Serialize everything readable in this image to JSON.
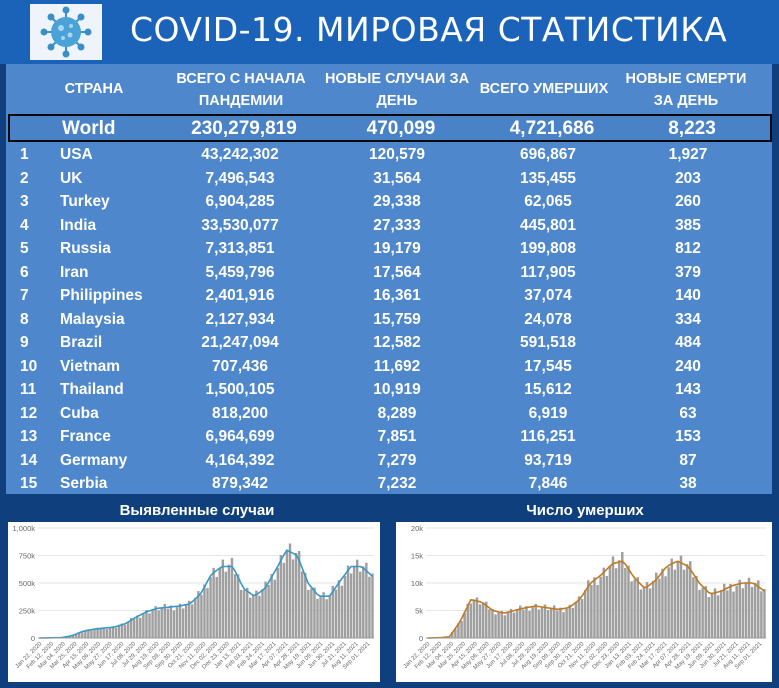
{
  "header": {
    "title": "COVID-19. МИРОВАЯ СТАТИСТИКА",
    "logo_icon": "coronavirus-icon"
  },
  "table": {
    "columns": [
      "СТРАНА",
      "ВСЕГО С НАЧАЛА ПАНДЕМИИ",
      "НОВЫЕ СЛУЧАИ ЗА ДЕНЬ",
      "ВСЕГО УМЕРШИХ",
      "НОВЫЕ СМЕРТИ ЗА ДЕНЬ"
    ],
    "world": {
      "name": "World",
      "total": "230,279,819",
      "new": "470,099",
      "deaths": "4,721,686",
      "new_deaths": "8,223"
    },
    "rows": [
      {
        "rank": "1",
        "country": "USA",
        "total": "43,242,302",
        "new": "120,579",
        "deaths": "696,867",
        "new_deaths": "1,927"
      },
      {
        "rank": "2",
        "country": "UK",
        "total": "7,496,543",
        "new": "31,564",
        "deaths": "135,455",
        "new_deaths": "203"
      },
      {
        "rank": "3",
        "country": "Turkey",
        "total": "6,904,285",
        "new": "29,338",
        "deaths": "62,065",
        "new_deaths": "260"
      },
      {
        "rank": "4",
        "country": "India",
        "total": "33,530,077",
        "new": "27,333",
        "deaths": "445,801",
        "new_deaths": "385"
      },
      {
        "rank": "5",
        "country": "Russia",
        "total": "7,313,851",
        "new": "19,179",
        "deaths": "199,808",
        "new_deaths": "812"
      },
      {
        "rank": "6",
        "country": "Iran",
        "total": "5,459,796",
        "new": "17,564",
        "deaths": "117,905",
        "new_deaths": "379"
      },
      {
        "rank": "7",
        "country": "Philippines",
        "total": "2,401,916",
        "new": "16,361",
        "deaths": "37,074",
        "new_deaths": "140"
      },
      {
        "rank": "8",
        "country": "Malaysia",
        "total": "2,127,934",
        "new": "15,759",
        "deaths": "24,078",
        "new_deaths": "334"
      },
      {
        "rank": "9",
        "country": "Brazil",
        "total": "21,247,094",
        "new": "12,582",
        "deaths": "591,518",
        "new_deaths": "484"
      },
      {
        "rank": "10",
        "country": "Vietnam",
        "total": "707,436",
        "new": "11,692",
        "deaths": "17,545",
        "new_deaths": "240"
      },
      {
        "rank": "11",
        "country": "Thailand",
        "total": "1,500,105",
        "new": "10,919",
        "deaths": "15,612",
        "new_deaths": "143"
      },
      {
        "rank": "12",
        "country": "Cuba",
        "total": "818,200",
        "new": "8,289",
        "deaths": "6,919",
        "new_deaths": "63"
      },
      {
        "rank": "13",
        "country": "France",
        "total": "6,964,699",
        "new": "7,851",
        "deaths": "116,251",
        "new_deaths": "153"
      },
      {
        "rank": "14",
        "country": "Germany",
        "total": "4,164,392",
        "new": "7,279",
        "deaths": "93,719",
        "new_deaths": "87"
      },
      {
        "rank": "15",
        "country": "Serbia",
        "total": "879,342",
        "new": "7,232",
        "deaths": "7,846",
        "new_deaths": "38"
      }
    ]
  },
  "charts": {
    "left_title": "Выявленные случаи",
    "right_title": "Число умерших"
  },
  "chart_data": [
    {
      "type": "bar",
      "title": "Выявленные случаи",
      "yticks": [
        "0",
        "250k",
        "500k",
        "750k",
        "1,000k"
      ],
      "ylim": [
        0,
        1000000
      ],
      "xticks": [
        "Jan 22, 2020",
        "Feb 12, 2020",
        "Mar 04, 2020",
        "Mar 25, 2020",
        "Apr 15, 2020",
        "May 06, 2020",
        "May 27, 2020",
        "Jun 17, 2020",
        "Jul 08, 2020",
        "Jul 29, 2020",
        "Aug 19, 2020",
        "Sep 09, 2020",
        "Sep 30, 2020",
        "Oct 21, 2020",
        "Nov 11, 2020",
        "Dec 02, 2020",
        "Dec 23, 2020",
        "Jan 13, 2021",
        "Feb 03, 2021",
        "Feb 24, 2021",
        "Mar 17, 2021",
        "Apr 07, 2021",
        "Apr 28, 2021",
        "May 19, 2021",
        "Jun 09, 2021",
        "Jun 30, 2021",
        "Jul 21, 2021",
        "Aug 11, 2021",
        "Sep 01, 2021"
      ],
      "series": [
        {
          "values": [
            0,
            2000,
            3000,
            20000,
            60000,
            80000,
            90000,
            100000,
            130000,
            190000,
            240000,
            270000,
            280000,
            290000,
            310000,
            400000,
            580000,
            650000,
            650000,
            450000,
            380000,
            450000,
            620000,
            800000,
            750000,
            500000,
            380000,
            380000,
            520000,
            650000,
            650000,
            560000
          ]
        },
        {
          "values": [
            0,
            2000,
            3000,
            20000,
            60000,
            80000,
            90000,
            100000,
            130000,
            190000,
            240000,
            270000,
            280000,
            290000,
            310000,
            400000,
            580000,
            650000,
            650000,
            450000,
            380000,
            450000,
            620000,
            800000,
            750000,
            500000,
            380000,
            380000,
            520000,
            650000,
            650000,
            560000
          ]
        }
      ],
      "colors": {
        "bars": "#9f9f9f",
        "line": "#3a97c7"
      }
    },
    {
      "type": "bar",
      "title": "Число умерших",
      "yticks": [
        "0",
        "5k",
        "10k",
        "15k",
        "20k"
      ],
      "ylim": [
        0,
        20000
      ],
      "xticks": [
        "Jan 22, 2020",
        "Feb 12, 2020",
        "Mar 04, 2020",
        "Mar 25, 2020",
        "Apr 15, 2020",
        "May 06, 2020",
        "May 27, 2020",
        "Jun 17, 2020",
        "Jul 08, 2020",
        "Jul 29, 2020",
        "Aug 19, 2020",
        "Sep 09, 2020",
        "Sep 30, 2020",
        "Oct 21, 2020",
        "Nov 11, 2020",
        "Dec 02, 2020",
        "Dec 23, 2020",
        "Jan 13, 2021",
        "Feb 03, 2021",
        "Feb 24, 2021",
        "Mar 17, 2021",
        "Apr 07, 2021",
        "Apr 28, 2021",
        "May 19, 2021",
        "Jun 09, 2021",
        "Jun 30, 2021",
        "Jul 21, 2021",
        "Aug 11, 2021",
        "Sep 01, 2021"
      ],
      "series": [
        {
          "values": [
            0,
            50,
            200,
            3000,
            7000,
            6500,
            5000,
            4500,
            5000,
            5500,
            5800,
            5500,
            5200,
            5500,
            7000,
            10000,
            11500,
            13500,
            14000,
            11000,
            9000,
            10500,
            13000,
            14000,
            13000,
            10000,
            8000,
            8500,
            9500,
            10000,
            10000,
            8500
          ]
        },
        {
          "values": [
            0,
            50,
            200,
            3000,
            7000,
            6500,
            5000,
            4500,
            5000,
            5500,
            5800,
            5500,
            5200,
            5500,
            7000,
            10000,
            11500,
            13500,
            14000,
            11000,
            9000,
            10500,
            13000,
            14000,
            13000,
            10000,
            8000,
            8500,
            9500,
            10000,
            10000,
            8500
          ]
        }
      ],
      "colors": {
        "bars": "#9f9f9f",
        "line": "#c07a24"
      }
    }
  ]
}
